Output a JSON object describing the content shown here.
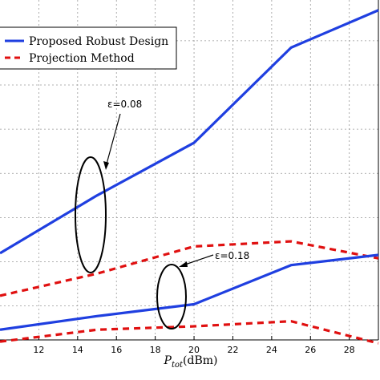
{
  "chart_data": {
    "type": "line",
    "xlabel_main": "P",
    "xlabel_sub": "tot",
    "xlabel_unit": "(dBm)",
    "x_ticks": [
      12,
      14,
      16,
      18,
      20,
      22,
      24,
      26,
      28
    ],
    "xlim": [
      10,
      29.5
    ],
    "ylim": [
      0,
      10
    ],
    "grid": true,
    "legend_position": "top-left",
    "series": [
      {
        "name": "Proposed Robust Design",
        "legend": true,
        "color": "#1f3fe0",
        "dash": "solid",
        "x": [
          10,
          15,
          20,
          25,
          29.5
        ],
        "y": [
          2.55,
          4.25,
          5.8,
          8.6,
          9.7
        ]
      },
      {
        "name": "Projection Method",
        "legend": true,
        "color": "#e01010",
        "dash": "dashed",
        "x": [
          10,
          15,
          20,
          25,
          29.5
        ],
        "y": [
          1.3,
          1.95,
          2.75,
          2.9,
          2.4
        ]
      },
      {
        "name": "",
        "legend": false,
        "color": "#1f3fe0",
        "dash": "solid",
        "x": [
          10,
          15,
          20,
          25,
          29.5
        ],
        "y": [
          0.3,
          0.7,
          1.05,
          2.2,
          2.5
        ]
      },
      {
        "name": "",
        "legend": false,
        "color": "#e01010",
        "dash": "dashed",
        "x": [
          10,
          15,
          20,
          25,
          29.5
        ],
        "y": [
          -0.05,
          0.3,
          0.4,
          0.55,
          -0.1
        ]
      }
    ],
    "annotations": [
      {
        "text": "ε=0.08",
        "x": 14.2,
        "y": 4.1
      },
      {
        "text": "ε=0.18",
        "x": 19.1,
        "y": 0.85
      }
    ]
  }
}
